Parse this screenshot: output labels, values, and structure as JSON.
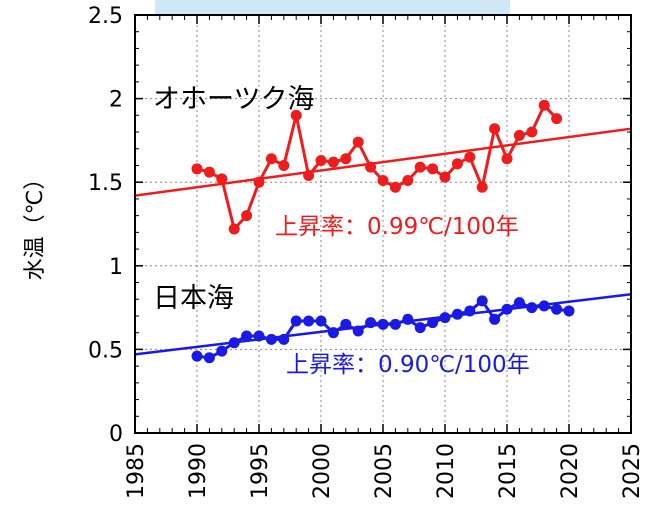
{
  "chart_data": {
    "type": "line",
    "xlim": [
      1985,
      2025
    ],
    "ylim": [
      0,
      2.5
    ],
    "x_ticks": [
      "1985",
      "1990",
      "1995",
      "2000",
      "2005",
      "2010",
      "2015",
      "2020",
      "2025"
    ],
    "y_ticks": [
      "0",
      "0.5",
      "1",
      "1.5",
      "2",
      "2.5"
    ],
    "ylabel": "水温（℃）",
    "grid": true,
    "series": [
      {
        "name": "オホーツク海",
        "color": "#ee1c1c",
        "x": [
          1990,
          1991,
          1992,
          1993,
          1994,
          1995,
          1996,
          1997,
          1998,
          1999,
          2000,
          2001,
          2002,
          2003,
          2004,
          2005,
          2006,
          2007,
          2008,
          2009,
          2010,
          2011,
          2012,
          2013,
          2014,
          2015,
          2016,
          2017,
          2018,
          2019
        ],
        "values": [
          1.58,
          1.56,
          1.52,
          1.22,
          1.3,
          1.5,
          1.64,
          1.6,
          1.9,
          1.54,
          1.63,
          1.62,
          1.64,
          1.74,
          1.59,
          1.51,
          1.47,
          1.51,
          1.59,
          1.58,
          1.53,
          1.61,
          1.65,
          1.47,
          1.82,
          1.64,
          1.78,
          1.8,
          1.96,
          1.88
        ],
        "trend": {
          "x": [
            1985,
            2025
          ],
          "y": [
            1.42,
            1.82
          ]
        },
        "rate_label": "上昇率：0.99℃/100年"
      },
      {
        "name": "日本海",
        "color": "#1a1ae6",
        "x": [
          1990,
          1991,
          1992,
          1993,
          1994,
          1995,
          1996,
          1997,
          1998,
          1999,
          2000,
          2001,
          2002,
          2003,
          2004,
          2005,
          2006,
          2007,
          2008,
          2009,
          2010,
          2011,
          2012,
          2013,
          2014,
          2015,
          2016,
          2017,
          2018,
          2019,
          2020
        ],
        "values": [
          0.46,
          0.45,
          0.49,
          0.54,
          0.58,
          0.58,
          0.56,
          0.56,
          0.67,
          0.67,
          0.67,
          0.6,
          0.65,
          0.61,
          0.66,
          0.65,
          0.65,
          0.68,
          0.63,
          0.66,
          0.69,
          0.71,
          0.73,
          0.79,
          0.68,
          0.74,
          0.78,
          0.75,
          0.76,
          0.74,
          0.73
        ],
        "trend": {
          "x": [
            1985,
            2025
          ],
          "y": [
            0.47,
            0.83
          ]
        },
        "rate_label": "上昇率：0.90℃/100年"
      }
    ]
  }
}
